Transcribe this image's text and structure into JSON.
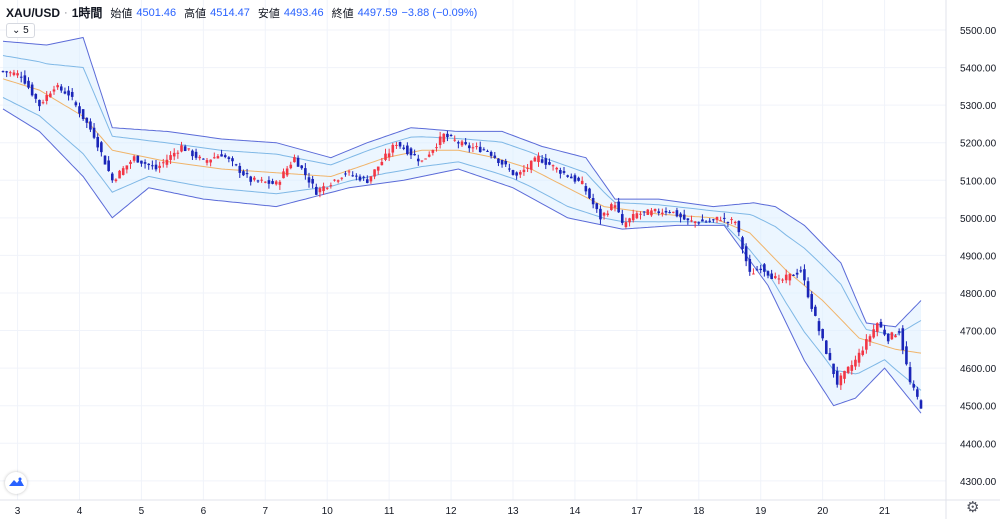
{
  "legend": {
    "symbol": "XAU/USD",
    "interval": "1時間",
    "open_label": "始値",
    "open": "4501.46",
    "high_label": "高値",
    "high": "4514.47",
    "low_label": "安値",
    "low": "4493.46",
    "close_label": "終値",
    "close": "4497.59",
    "change": "−3.88 (−0.09%)",
    "study_toggle": "5"
  },
  "icons": {
    "logo": "tradingview-logo-icon",
    "settings": "gear-icon",
    "collapse": "chevron-down-icon"
  },
  "colors": {
    "up": "#f23645",
    "down": "#1a25b8",
    "band_outer": "#5b6bd8",
    "band_inner": "#7fb8e6",
    "band_fill": "#dcefff",
    "basis": "#f0b46a"
  },
  "chart_data": {
    "type": "candlestick",
    "ylim": [
      4240,
      5560
    ],
    "y_ticks": [
      "5500.00",
      "5400.00",
      "5300.00",
      "5200.00",
      "5100.00",
      "5000.00",
      "4900.00",
      "4800.00",
      "4700.00",
      "4600.00",
      "4500.00",
      "4400.00",
      "4300.00"
    ],
    "x_ticks": [
      "3",
      "4",
      "5",
      "6",
      "7",
      "10",
      "11",
      "12",
      "13",
      "14",
      "17",
      "18",
      "19",
      "20",
      "21"
    ],
    "close_path": [
      [
        0,
        5390
      ],
      [
        5,
        5380
      ],
      [
        10,
        5300
      ],
      [
        14,
        5350
      ],
      [
        18,
        5330
      ],
      [
        25,
        5220
      ],
      [
        30,
        5100
      ],
      [
        36,
        5160
      ],
      [
        42,
        5130
      ],
      [
        49,
        5190
      ],
      [
        55,
        5150
      ],
      [
        60,
        5170
      ],
      [
        68,
        5100
      ],
      [
        75,
        5090
      ],
      [
        80,
        5160
      ],
      [
        86,
        5070
      ],
      [
        94,
        5120
      ],
      [
        100,
        5100
      ],
      [
        108,
        5200
      ],
      [
        115,
        5150
      ],
      [
        121,
        5220
      ],
      [
        127,
        5190
      ],
      [
        133,
        5180
      ],
      [
        141,
        5110
      ],
      [
        147,
        5160
      ],
      [
        152,
        5130
      ],
      [
        159,
        5090
      ],
      [
        164,
        5000
      ],
      [
        168,
        5040
      ],
      [
        170,
        4980
      ],
      [
        174,
        5010
      ],
      [
        183,
        5020
      ],
      [
        188,
        4990
      ],
      [
        190,
        4990
      ],
      [
        194,
        4990
      ],
      [
        197,
        5000
      ],
      [
        199,
        4990
      ],
      [
        201,
        4990
      ],
      [
        205,
        4850
      ],
      [
        208,
        4870
      ],
      [
        213,
        4830
      ],
      [
        219,
        4860
      ],
      [
        224,
        4700
      ],
      [
        229,
        4560
      ],
      [
        234,
        4620
      ],
      [
        240,
        4720
      ],
      [
        243,
        4680
      ],
      [
        246,
        4700
      ],
      [
        249,
        4560
      ],
      [
        252,
        4500
      ]
    ],
    "bollinger": {
      "basis": [
        [
          0,
          5370
        ],
        [
          10,
          5340
        ],
        [
          22,
          5270
        ],
        [
          30,
          5180
        ],
        [
          45,
          5150
        ],
        [
          60,
          5130
        ],
        [
          75,
          5120
        ],
        [
          90,
          5110
        ],
        [
          105,
          5160
        ],
        [
          115,
          5180
        ],
        [
          125,
          5180
        ],
        [
          135,
          5160
        ],
        [
          145,
          5130
        ],
        [
          155,
          5080
        ],
        [
          165,
          5030
        ],
        [
          180,
          5010
        ],
        [
          195,
          5000
        ],
        [
          205,
          4960
        ],
        [
          215,
          4860
        ],
        [
          225,
          4780
        ],
        [
          235,
          4680
        ],
        [
          245,
          4650
        ],
        [
          252,
          4640
        ]
      ],
      "upper": [
        [
          0,
          5470
        ],
        [
          12,
          5460
        ],
        [
          22,
          5480
        ],
        [
          30,
          5240
        ],
        [
          45,
          5230
        ],
        [
          60,
          5210
        ],
        [
          75,
          5200
        ],
        [
          90,
          5160
        ],
        [
          100,
          5200
        ],
        [
          112,
          5240
        ],
        [
          125,
          5230
        ],
        [
          137,
          5230
        ],
        [
          148,
          5190
        ],
        [
          160,
          5160
        ],
        [
          168,
          5050
        ],
        [
          180,
          5050
        ],
        [
          195,
          5030
        ],
        [
          206,
          5040
        ],
        [
          212,
          5030
        ],
        [
          220,
          4980
        ],
        [
          230,
          4880
        ],
        [
          237,
          4720
        ],
        [
          245,
          4710
        ],
        [
          252,
          4780
        ]
      ],
      "lower": [
        [
          0,
          5290
        ],
        [
          10,
          5230
        ],
        [
          22,
          5110
        ],
        [
          30,
          5000
        ],
        [
          40,
          5080
        ],
        [
          55,
          5050
        ],
        [
          75,
          5030
        ],
        [
          95,
          5080
        ],
        [
          110,
          5100
        ],
        [
          125,
          5130
        ],
        [
          140,
          5080
        ],
        [
          155,
          5000
        ],
        [
          170,
          4970
        ],
        [
          185,
          4980
        ],
        [
          198,
          4980
        ],
        [
          210,
          4820
        ],
        [
          220,
          4620
        ],
        [
          228,
          4500
        ],
        [
          234,
          4520
        ],
        [
          242,
          4600
        ],
        [
          247,
          4540
        ],
        [
          252,
          4480
        ]
      ]
    },
    "last": {
      "open": 4501.46,
      "high": 4514.47,
      "low": 4493.46,
      "close": 4497.59,
      "change": -3.88,
      "change_pct": -0.09
    }
  }
}
